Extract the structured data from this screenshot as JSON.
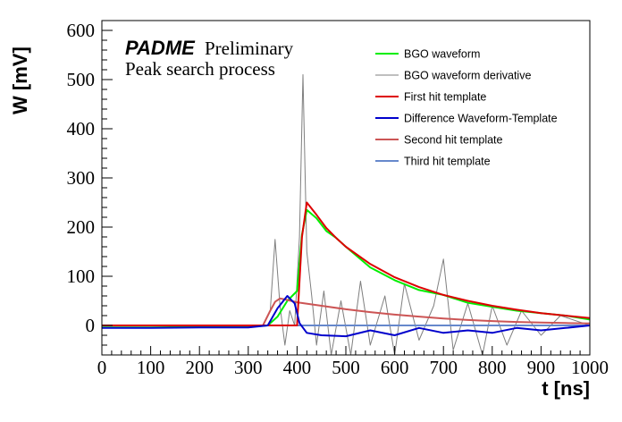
{
  "chart_data": {
    "type": "line",
    "xlabel": "t [ns]",
    "ylabel": "W [mV]",
    "xlim": [
      0,
      1000
    ],
    "ylim": [
      -60,
      620
    ],
    "x_ticks": [
      0,
      100,
      200,
      300,
      400,
      500,
      600,
      700,
      800,
      900,
      1000
    ],
    "y_ticks": [
      0,
      100,
      200,
      300,
      400,
      500,
      600
    ],
    "grid": false,
    "legend_position": "top-right",
    "annotations": {
      "brand": "PADME",
      "preliminary": "Preliminary",
      "subtitle": "Peak search process"
    },
    "series": [
      {
        "name": "BGO waveform",
        "color": "#00ee00",
        "x": [
          0,
          100,
          200,
          300,
          340,
          360,
          380,
          400,
          410,
          420,
          440,
          460,
          480,
          500,
          550,
          600,
          650,
          700,
          750,
          800,
          850,
          900,
          950,
          1000
        ],
        "y": [
          -4,
          -4,
          -3,
          -3,
          0,
          18,
          50,
          70,
          185,
          235,
          218,
          192,
          178,
          160,
          118,
          92,
          72,
          62,
          46,
          38,
          30,
          25,
          20,
          12
        ]
      },
      {
        "name": "BGO waveform derivative",
        "color": "#7f7f7f",
        "x": [
          0,
          100,
          200,
          300,
          330,
          345,
          355,
          365,
          375,
          385,
          395,
          405,
          412,
          420,
          430,
          440,
          455,
          470,
          490,
          510,
          530,
          550,
          580,
          600,
          620,
          650,
          680,
          700,
          720,
          750,
          780,
          800,
          830,
          860,
          900,
          940,
          1000
        ],
        "y": [
          0,
          0,
          0,
          0,
          0,
          30,
          175,
          40,
          -40,
          30,
          0,
          180,
          510,
          150,
          60,
          -40,
          70,
          -60,
          50,
          -60,
          90,
          -40,
          60,
          -60,
          85,
          -30,
          40,
          135,
          -50,
          45,
          -60,
          40,
          -40,
          30,
          -20,
          20,
          0
        ]
      },
      {
        "name": "First hit template",
        "color": "#dd0000",
        "x": [
          0,
          100,
          200,
          300,
          400,
          410,
          420,
          440,
          460,
          480,
          500,
          550,
          600,
          650,
          700,
          750,
          800,
          850,
          900,
          950,
          1000
        ],
        "y": [
          0,
          0,
          0,
          0,
          0,
          180,
          250,
          225,
          198,
          178,
          160,
          125,
          98,
          78,
          62,
          50,
          40,
          32,
          25,
          20,
          15
        ]
      },
      {
        "name": "Difference Waveform-Template",
        "color": "#0000cc",
        "x": [
          0,
          100,
          200,
          300,
          340,
          360,
          380,
          395,
          405,
          420,
          450,
          500,
          550,
          600,
          650,
          700,
          750,
          800,
          850,
          900,
          950,
          1000
        ],
        "y": [
          -5,
          -5,
          -4,
          -4,
          0,
          35,
          60,
          45,
          5,
          -15,
          -20,
          -22,
          -10,
          -20,
          -5,
          -15,
          -10,
          -15,
          -5,
          -10,
          -5,
          0
        ]
      },
      {
        "name": "Second hit template",
        "color": "#cc5555",
        "x": [
          0,
          300,
          330,
          345,
          355,
          365,
          375,
          400,
          450,
          500,
          550,
          600,
          650,
          700,
          750,
          800,
          850,
          900,
          950,
          1000
        ],
        "y": [
          0,
          0,
          0,
          30,
          48,
          55,
          53,
          47,
          40,
          33,
          27,
          22,
          18,
          14,
          11,
          9,
          7,
          6,
          5,
          4
        ]
      },
      {
        "name": "Third hit template",
        "color": "#6688cc",
        "x": [
          0,
          1000
        ],
        "y": [
          0,
          0
        ]
      }
    ]
  }
}
